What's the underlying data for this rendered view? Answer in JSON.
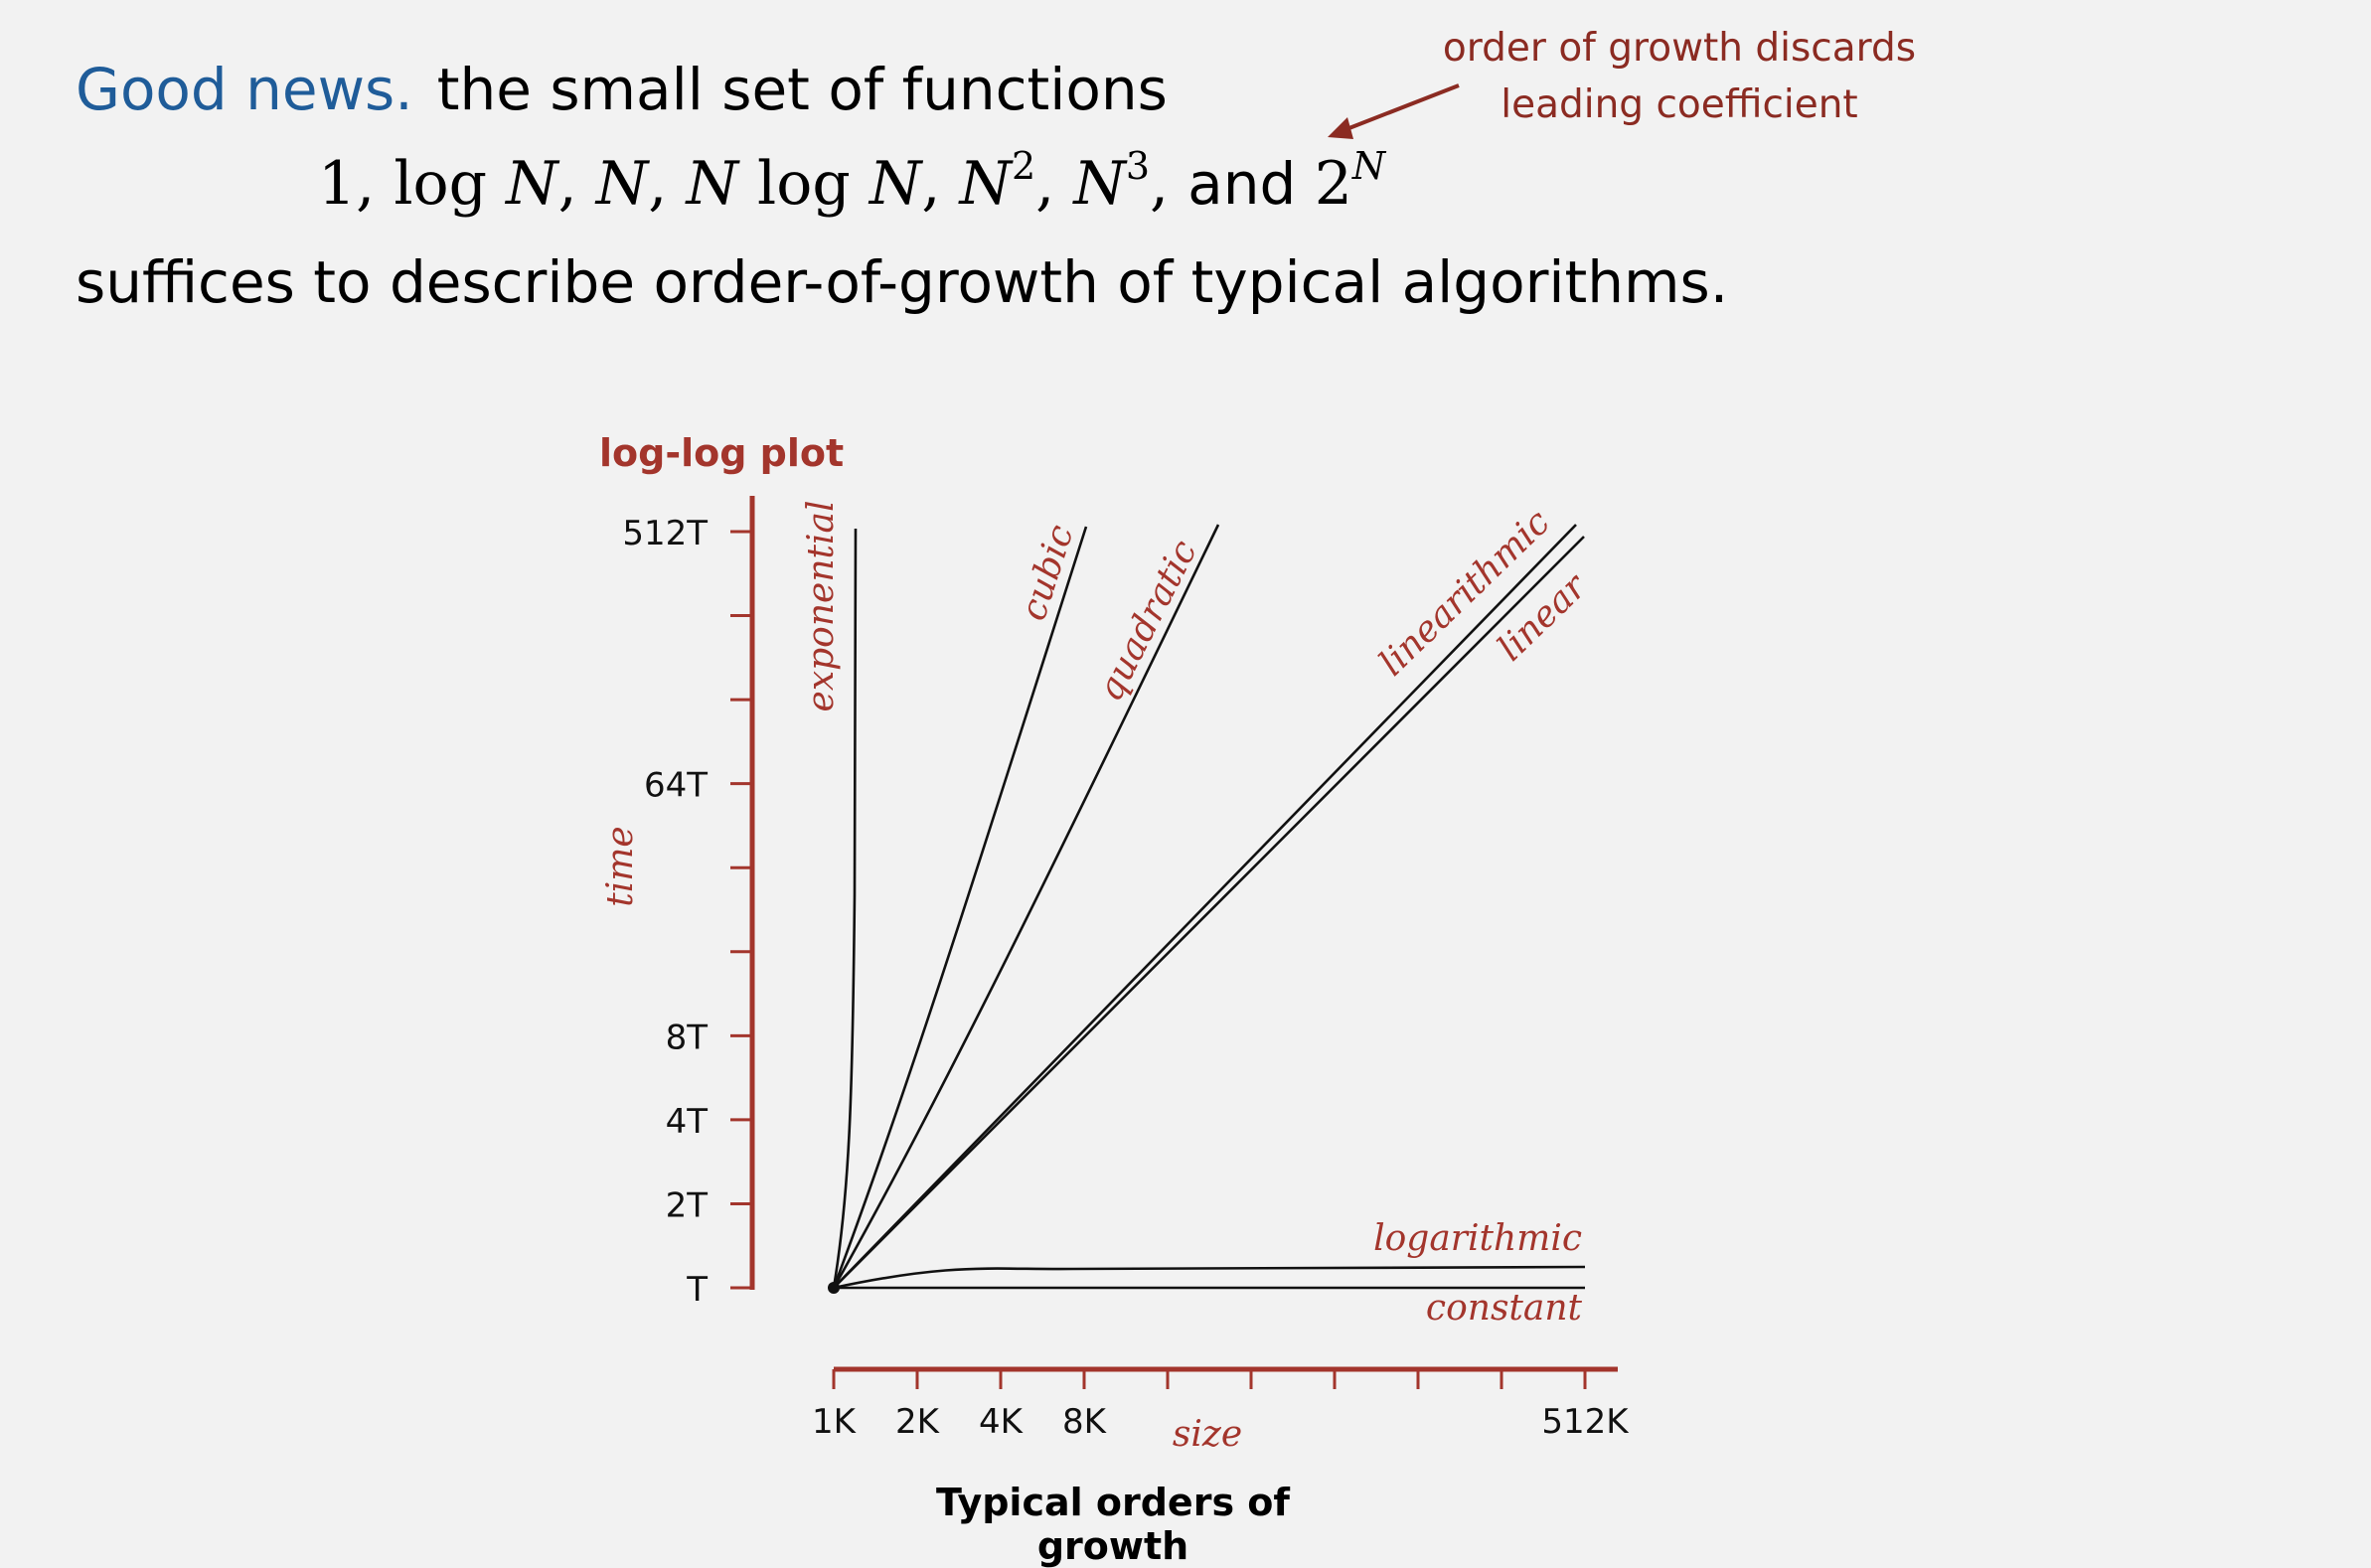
{
  "header": {
    "good_news": "Good news.",
    "line1_rest": "the small set of functions",
    "functions": {
      "f1": "1, ",
      "f2a": "log ",
      "f2b": "N",
      "f2c": ", ",
      "f3a": "N",
      "f3b": ", ",
      "f4a": "N",
      "f4b": " log ",
      "f4c": "N",
      "f4d": ", ",
      "f5a": "N",
      "f5sup": "2",
      "f5b": ", ",
      "f6a": "N",
      "f6sup": "3",
      "f6b": ", ",
      "and": "and ",
      "f7a": "2",
      "f7sup": "N"
    },
    "line3": "suffices to describe order-of-growth of typical algorithms."
  },
  "annotation": {
    "line1": "order of growth discards",
    "line2": "leading coefficient",
    "color": "#8b2b22"
  },
  "chart_data": {
    "type": "line",
    "title": "log-log plot",
    "caption": "Typical orders of growth",
    "xlabel": "size",
    "ylabel": "time",
    "x_scale": "log2",
    "y_scale": "log2",
    "x_ticks": [
      "1K",
      "2K",
      "4K",
      "8K",
      "512K"
    ],
    "x_tick_values": [
      1,
      2,
      4,
      8,
      512
    ],
    "y_ticks": [
      "T",
      "2T",
      "4T",
      "8T",
      "64T",
      "512T"
    ],
    "y_tick_values": [
      1,
      2,
      4,
      8,
      64,
      512
    ],
    "xlim": [
      1,
      512
    ],
    "ylim": [
      1,
      512
    ],
    "axis_color": "#a3352c",
    "series": [
      {
        "name": "constant",
        "x": [
          1,
          512
        ],
        "y": [
          1,
          1
        ]
      },
      {
        "name": "logarithmic",
        "x": [
          1,
          2,
          4,
          8,
          16,
          64,
          512
        ],
        "y": [
          1,
          1.1,
          1.15,
          1.18,
          1.19,
          1.2,
          1.22
        ]
      },
      {
        "name": "linear",
        "x": [
          1,
          512
        ],
        "y": [
          1,
          480
        ]
      },
      {
        "name": "linearithmic",
        "x": [
          1,
          512
        ],
        "y": [
          1,
          512
        ]
      },
      {
        "name": "quadratic",
        "x": [
          1,
          2,
          4,
          8,
          16,
          22.6
        ],
        "y": [
          1,
          4,
          16,
          64,
          256,
          512
        ]
      },
      {
        "name": "cubic",
        "x": [
          1,
          2,
          4,
          8,
          8
        ],
        "y": [
          1,
          8,
          64,
          512,
          512
        ]
      },
      {
        "name": "exponential",
        "x": [
          1,
          1.02,
          1.05,
          1.1,
          1.2,
          1.3
        ],
        "y": [
          1,
          2,
          4,
          16,
          128,
          512
        ]
      }
    ]
  }
}
